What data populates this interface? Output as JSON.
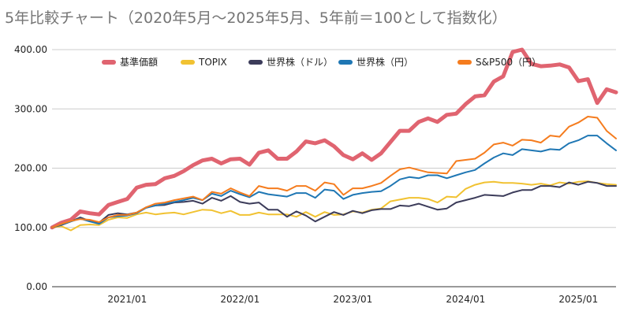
{
  "chart_data": {
    "type": "line",
    "title": "5年比較チャート（2020年5月〜2025年5月、5年前＝100として指数化）",
    "xlabel": "",
    "ylabel": "",
    "ylim": [
      0,
      400
    ],
    "y_ticks": [
      "0.00",
      "100.00",
      "200.00",
      "300.00",
      "400.00"
    ],
    "x_ticks": [
      {
        "label": "2021/01",
        "date": "2021-01"
      },
      {
        "label": "2022/01",
        "date": "2022-01"
      },
      {
        "label": "2023/01",
        "date": "2023-01"
      },
      {
        "label": "2024/01",
        "date": "2024-01"
      },
      {
        "label": "2025/01",
        "date": "2025-01"
      }
    ],
    "grid": true,
    "legend_position": "top",
    "x": [
      "2020-05",
      "2020-06",
      "2020-07",
      "2020-08",
      "2020-09",
      "2020-10",
      "2020-11",
      "2020-12",
      "2021-01",
      "2021-02",
      "2021-03",
      "2021-04",
      "2021-05",
      "2021-06",
      "2021-07",
      "2021-08",
      "2021-09",
      "2021-10",
      "2021-11",
      "2021-12",
      "2022-01",
      "2022-02",
      "2022-03",
      "2022-04",
      "2022-05",
      "2022-06",
      "2022-07",
      "2022-08",
      "2022-09",
      "2022-10",
      "2022-11",
      "2022-12",
      "2023-01",
      "2023-02",
      "2023-03",
      "2023-04",
      "2023-05",
      "2023-06",
      "2023-07",
      "2023-08",
      "2023-09",
      "2023-10",
      "2023-11",
      "2023-12",
      "2024-01",
      "2024-02",
      "2024-03",
      "2024-04",
      "2024-05",
      "2024-06",
      "2024-07",
      "2024-08",
      "2024-09",
      "2024-10",
      "2024-11",
      "2024-12",
      "2025-01",
      "2025-02",
      "2025-03",
      "2025-04",
      "2025-05"
    ],
    "series": [
      {
        "name": "基準価額",
        "color": "#e06470",
        "width": 5,
        "values": [
          100,
          108,
          113,
          127,
          124,
          122,
          138,
          143,
          148,
          167,
          172,
          173,
          183,
          187,
          195,
          205,
          213,
          216,
          208,
          215,
          216,
          206,
          226,
          230,
          216,
          216,
          228,
          245,
          242,
          247,
          237,
          222,
          215,
          225,
          214,
          225,
          244,
          263,
          263,
          278,
          284,
          278,
          290,
          292,
          308,
          321,
          323,
          346,
          355,
          396,
          400,
          376,
          372,
          373,
          375,
          370,
          347,
          350,
          310,
          333,
          328
        ]
      },
      {
        "name": "TOPIX",
        "color": "#f1c232",
        "width": 2,
        "values": [
          100,
          102,
          95,
          104,
          105,
          104,
          113,
          117,
          116,
          122,
          125,
          122,
          124,
          125,
          122,
          126,
          130,
          129,
          124,
          128,
          121,
          121,
          125,
          122,
          122,
          122,
          118,
          126,
          118,
          126,
          121,
          122,
          127,
          125,
          130,
          132,
          144,
          147,
          150,
          150,
          148,
          142,
          152,
          151,
          165,
          172,
          176,
          177,
          175,
          175,
          174,
          172,
          174,
          171,
          176,
          174,
          177,
          178,
          175,
          173,
          172
        ]
      },
      {
        "name": "世界株（ドル）",
        "color": "#3c3c5a",
        "width": 2,
        "values": [
          100,
          104,
          110,
          117,
          111,
          108,
          121,
          124,
          122,
          125,
          134,
          137,
          138,
          142,
          143,
          145,
          140,
          150,
          145,
          153,
          143,
          140,
          142,
          130,
          130,
          118,
          127,
          120,
          110,
          118,
          126,
          121,
          128,
          124,
          129,
          131,
          131,
          137,
          136,
          140,
          135,
          130,
          132,
          142,
          146,
          150,
          155,
          154,
          153,
          159,
          163,
          163,
          170,
          170,
          168,
          176,
          172,
          177,
          175,
          170,
          170
        ]
      },
      {
        "name": "世界株（円）",
        "color": "#1f77b4",
        "width": 2,
        "values": [
          100,
          105,
          110,
          115,
          110,
          106,
          117,
          119,
          120,
          124,
          133,
          137,
          140,
          143,
          146,
          150,
          146,
          157,
          153,
          162,
          156,
          151,
          160,
          156,
          154,
          152,
          158,
          158,
          150,
          164,
          162,
          148,
          155,
          158,
          160,
          161,
          170,
          181,
          185,
          183,
          188,
          188,
          183,
          188,
          193,
          197,
          208,
          218,
          225,
          222,
          232,
          230,
          228,
          232,
          231,
          242,
          247,
          255,
          255,
          242,
          230
        ]
      },
      {
        "name": "S&P500（円）",
        "color": "#f57c1e",
        "width": 2,
        "values": [
          100,
          106,
          111,
          114,
          113,
          109,
          117,
          121,
          121,
          125,
          134,
          140,
          142,
          146,
          149,
          152,
          146,
          160,
          157,
          166,
          159,
          153,
          170,
          166,
          166,
          162,
          170,
          170,
          162,
          176,
          173,
          155,
          166,
          166,
          170,
          175,
          187,
          198,
          201,
          197,
          193,
          192,
          191,
          212,
          214,
          216,
          226,
          240,
          243,
          238,
          248,
          247,
          243,
          255,
          253,
          270,
          277,
          287,
          285,
          263,
          250
        ]
      }
    ]
  }
}
